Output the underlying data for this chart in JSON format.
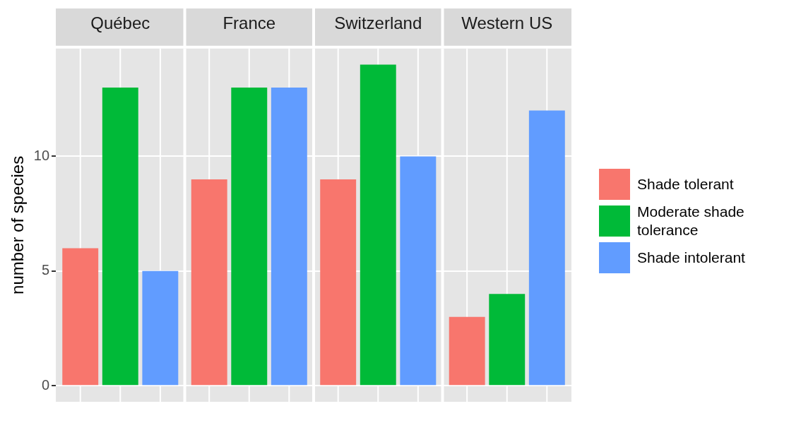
{
  "chart_data": {
    "type": "bar",
    "ylabel": "number of species",
    "categories": [
      "Québec",
      "France",
      "Switzerland",
      "Western US"
    ],
    "ylim": [
      -0.7,
      14.7
    ],
    "yticks": [
      0,
      5,
      10
    ],
    "grid": true,
    "legend": "right",
    "series": [
      {
        "name": "Shade tolerant",
        "color": "#f8766d",
        "values": [
          6,
          9,
          9,
          3
        ]
      },
      {
        "name": "Moderate shade tolerance",
        "color": "#00ba38",
        "values": [
          13,
          13,
          14,
          4
        ]
      },
      {
        "name": "Shade intolerant",
        "color": "#619cff",
        "values": [
          5,
          13,
          10,
          12
        ]
      }
    ]
  }
}
